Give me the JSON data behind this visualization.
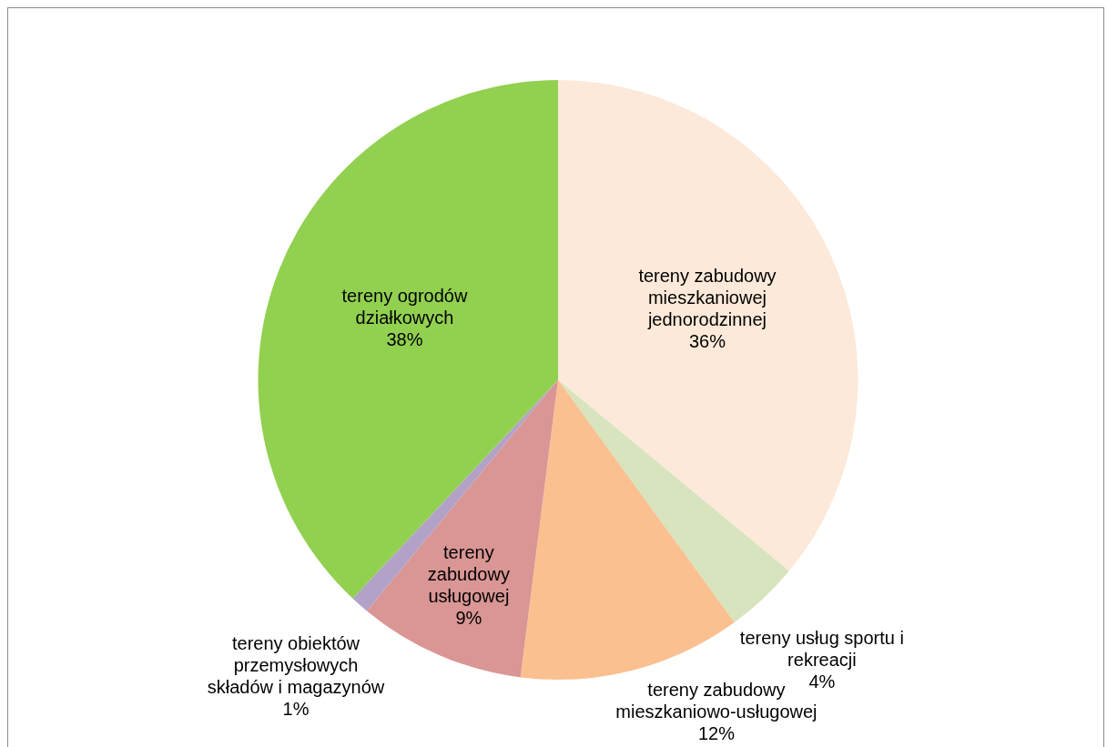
{
  "chart_data": {
    "type": "pie",
    "categories": [
      "tereny zabudowy mieszkaniowej jednorodzinnej",
      "tereny usług sportu i rekreacji",
      "tereny zabudowy mieszkaniowo-usługowej",
      "tereny zabudowy usługowej",
      "tereny obiektów przemysłowych składów i magazynów",
      "tereny ogrodów działkowych"
    ],
    "values": [
      36,
      4,
      12,
      9,
      1,
      38
    ],
    "value_labels": [
      "36%",
      "4%",
      "12%",
      "9%",
      "1%",
      "38%"
    ],
    "colors": [
      "#fde9d9",
      "#d7e4bd",
      "#fac090",
      "#d99694",
      "#b3a2c7",
      "#92d050"
    ],
    "legend": false
  }
}
